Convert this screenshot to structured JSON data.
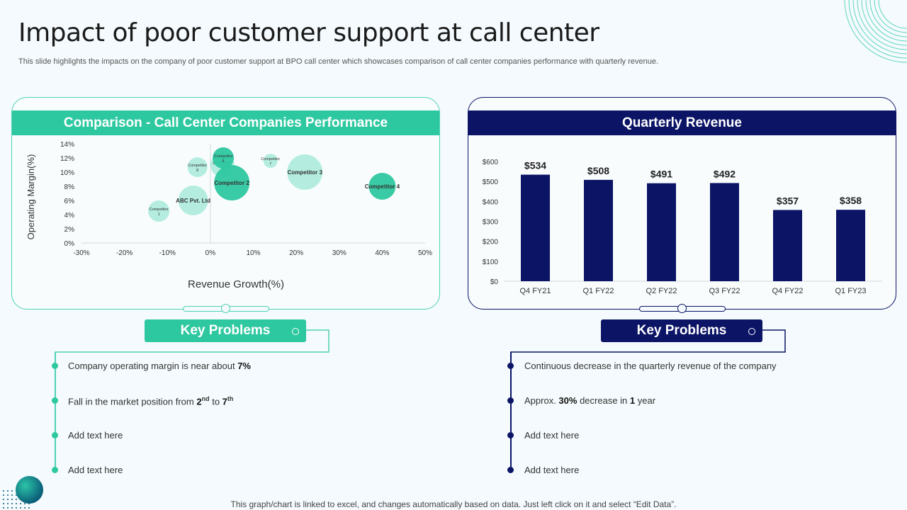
{
  "page": {
    "title": "Impact of poor customer support at call center",
    "subtitle": "This slide highlights the impacts on the company of poor customer support at BPO call center which showcases comparison of call center companies performance with quarterly revenue.",
    "footer": "This graph/chart is linked to excel, and changes automatically based on data. Just left click on it and select “Edit Data”."
  },
  "left_panel": {
    "header": "Comparison - Call Center Companies Performance",
    "key_problems_label": "Key Problems",
    "items": [
      {
        "pre": "Company operating margin is near about ",
        "bold": "7%"
      },
      {
        "pre": "Fall in the market position from ",
        "b1": "2",
        "s1": "nd",
        "mid": " to ",
        "b2": "7",
        "s2": "th"
      },
      {
        "text": "Add text here"
      },
      {
        "text": "Add text here"
      }
    ]
  },
  "right_panel": {
    "header": "Quarterly Revenue",
    "key_problems_label": "Key Problems",
    "items": [
      {
        "text": "Continuous decrease in the quarterly revenue  of the company"
      },
      {
        "pre": "Approx. ",
        "b1": "30%",
        "mid": " decrease  in ",
        "b2": "1",
        "post": " year"
      },
      {
        "text": "Add text here"
      },
      {
        "text": "Add text here"
      }
    ]
  },
  "chart_data": [
    {
      "type": "scatter",
      "title": "Comparison - Call Center Companies Performance",
      "xlabel": "Revenue Growth(%)",
      "ylabel": "Operating Margin(%)",
      "xlim": [
        -30,
        50
      ],
      "ylim": [
        0,
        14
      ],
      "x_ticks": [
        "-30%",
        "-20%",
        "-10%",
        "0%",
        "10%",
        "20%",
        "30%",
        "40%",
        "50%"
      ],
      "y_ticks": [
        "0%",
        "2%",
        "4%",
        "6%",
        "8%",
        "10%",
        "12%",
        "14%"
      ],
      "color_light": "#a8ead9",
      "color_dark": "#2ec8a0",
      "points": [
        {
          "label": "Competitor 1",
          "x": -12,
          "y": 4.5,
          "size": 15,
          "shade": "light"
        },
        {
          "label": "ABC Pvt. Ltd",
          "x": -4,
          "y": 6,
          "size": 21,
          "shade": "light"
        },
        {
          "label": "Competitor 8",
          "x": -3,
          "y": 10.7,
          "size": 14,
          "shade": "light"
        },
        {
          "label": "Competitor 5",
          "x": 2.8,
          "y": 11,
          "size": 17,
          "shade": "light"
        },
        {
          "label": "Competitor 6",
          "x": 3,
          "y": 12,
          "size": 15,
          "shade": "dark"
        },
        {
          "label": "Competitor 2",
          "x": 5,
          "y": 8.5,
          "size": 25,
          "shade": "dark"
        },
        {
          "label": "Competitor 7",
          "x": 14,
          "y": 11.6,
          "size": 10,
          "shade": "light"
        },
        {
          "label": "Competitor 3",
          "x": 22,
          "y": 10,
          "size": 25,
          "shade": "light"
        },
        {
          "label": "Competitor 4",
          "x": 40,
          "y": 8,
          "size": 19,
          "shade": "dark"
        }
      ]
    },
    {
      "type": "bar",
      "title": "Quarterly Revenue",
      "categories": [
        "Q4 FY21",
        "Q1 FY22",
        "Q2 FY22",
        "Q3 FY22",
        "Q4 FY22",
        "Q1 FY23"
      ],
      "values": [
        534,
        508,
        491,
        492,
        357,
        358
      ],
      "value_labels": [
        "$534",
        "$508",
        "$491",
        "$492",
        "$357",
        "$358"
      ],
      "ylim": [
        0,
        600
      ],
      "y_ticks": [
        "$0",
        "$100",
        "$200",
        "$300",
        "$400",
        "$500",
        "$600"
      ],
      "color": "#0b1465"
    }
  ]
}
